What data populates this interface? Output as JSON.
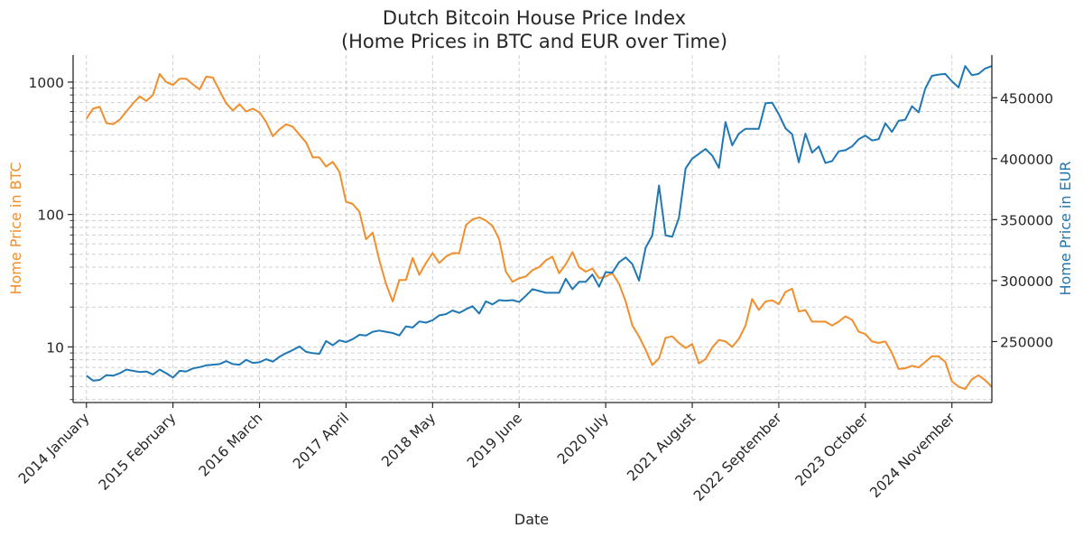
{
  "chart_data": {
    "type": "line",
    "title": "Dutch Bitcoin House Price Index",
    "subtitle": "(Home Prices in BTC and EUR over Time)",
    "xlabel": "Date",
    "x_tick_labels": [
      "2014 January",
      "2015 February",
      "2016 March",
      "2017 April",
      "2018 May",
      "2019 June",
      "2020 July",
      "2021 August",
      "2022 September",
      "2023 October",
      "2024 November"
    ],
    "x_tick_dates": [
      "2014-01",
      "2015-02",
      "2016-03",
      "2017-04",
      "2018-05",
      "2019-06",
      "2020-07",
      "2021-08",
      "2022-09",
      "2023-10",
      "2024-11"
    ],
    "x_range": [
      "2013-11",
      "2025-05"
    ],
    "left_axis": {
      "label": "Home Price in BTC",
      "scale": "log",
      "range": [
        3.8,
        1600
      ],
      "ticks": [
        10,
        100,
        1000
      ],
      "tick_labels": [
        "10",
        "100",
        "1000"
      ],
      "color": "#f28e2b"
    },
    "right_axis": {
      "label": "Home Price in EUR",
      "scale": "linear",
      "range": [
        200000,
        485000
      ],
      "ticks": [
        250000,
        300000,
        350000,
        400000,
        450000
      ],
      "tick_labels": [
        "250000",
        "300000",
        "350000",
        "400000",
        "450000"
      ],
      "color": "#1f77b4"
    },
    "grid": true,
    "series": [
      {
        "axis": "left",
        "color": "#f28e2b",
        "points": [
          [
            "2014-01",
            530
          ],
          [
            "2014-02",
            630
          ],
          [
            "2014-03",
            650
          ],
          [
            "2014-04",
            490
          ],
          [
            "2014-05",
            480
          ],
          [
            "2014-06",
            520
          ],
          [
            "2014-07",
            600
          ],
          [
            "2014-08",
            690
          ],
          [
            "2014-09",
            780
          ],
          [
            "2014-10",
            720
          ],
          [
            "2014-11",
            800
          ],
          [
            "2014-12",
            1150
          ],
          [
            "2015-01",
            1000
          ],
          [
            "2015-02",
            950
          ],
          [
            "2015-03",
            1060
          ],
          [
            "2015-04",
            1060
          ],
          [
            "2015-05",
            960
          ],
          [
            "2015-06",
            880
          ],
          [
            "2015-07",
            1100
          ],
          [
            "2015-08",
            1080
          ],
          [
            "2015-09",
            860
          ],
          [
            "2015-10",
            690
          ],
          [
            "2015-11",
            610
          ],
          [
            "2015-12",
            680
          ],
          [
            "2016-01",
            600
          ],
          [
            "2016-02",
            630
          ],
          [
            "2016-03",
            590
          ],
          [
            "2016-04",
            500
          ],
          [
            "2016-05",
            390
          ],
          [
            "2016-06",
            440
          ],
          [
            "2016-07",
            480
          ],
          [
            "2016-08",
            460
          ],
          [
            "2016-09",
            400
          ],
          [
            "2016-10",
            350
          ],
          [
            "2016-11",
            270
          ],
          [
            "2016-12",
            270
          ],
          [
            "2017-01",
            230
          ],
          [
            "2017-02",
            250
          ],
          [
            "2017-03",
            210
          ],
          [
            "2017-04",
            125
          ],
          [
            "2017-05",
            120
          ],
          [
            "2017-06",
            105
          ],
          [
            "2017-07",
            65
          ],
          [
            "2017-08",
            73
          ],
          [
            "2017-09",
            45
          ],
          [
            "2017-10",
            30
          ],
          [
            "2017-11",
            22
          ],
          [
            "2017-12",
            32
          ],
          [
            "2018-01",
            32
          ],
          [
            "2018-02",
            47
          ],
          [
            "2018-03",
            35
          ],
          [
            "2018-04",
            43
          ],
          [
            "2018-05",
            51
          ],
          [
            "2018-06",
            43
          ],
          [
            "2018-07",
            48
          ],
          [
            "2018-08",
            51
          ],
          [
            "2018-09",
            51
          ],
          [
            "2018-10",
            83
          ],
          [
            "2018-11",
            92
          ],
          [
            "2018-12",
            95
          ],
          [
            "2019-01",
            90
          ],
          [
            "2019-02",
            82
          ],
          [
            "2019-03",
            65
          ],
          [
            "2019-04",
            37
          ],
          [
            "2019-05",
            31
          ],
          [
            "2019-06",
            33
          ],
          [
            "2019-07",
            34
          ],
          [
            "2019-08",
            38
          ],
          [
            "2019-09",
            40
          ],
          [
            "2019-10",
            45
          ],
          [
            "2019-11",
            48
          ],
          [
            "2019-12",
            36
          ],
          [
            "2020-01",
            42
          ],
          [
            "2020-02",
            52
          ],
          [
            "2020-03",
            40
          ],
          [
            "2020-04",
            37
          ],
          [
            "2020-05",
            39
          ],
          [
            "2020-06",
            33
          ],
          [
            "2020-07",
            34
          ],
          [
            "2020-08",
            36
          ],
          [
            "2020-09",
            30
          ],
          [
            "2020-10",
            22
          ],
          [
            "2020-11",
            14.5
          ],
          [
            "2020-12",
            12
          ],
          [
            "2021-01",
            9.5
          ],
          [
            "2021-02",
            7.3
          ],
          [
            "2021-03",
            8.2
          ],
          [
            "2021-04",
            11.7
          ],
          [
            "2021-05",
            12
          ],
          [
            "2021-06",
            10.7
          ],
          [
            "2021-07",
            9.8
          ],
          [
            "2021-08",
            10.5
          ],
          [
            "2021-09",
            7.5
          ],
          [
            "2021-10",
            8.1
          ],
          [
            "2021-11",
            9.9
          ],
          [
            "2021-12",
            11.3
          ],
          [
            "2022-01",
            11
          ],
          [
            "2022-02",
            10
          ],
          [
            "2022-03",
            11.5
          ],
          [
            "2022-04",
            14.5
          ],
          [
            "2022-05",
            23
          ],
          [
            "2022-06",
            19
          ],
          [
            "2022-07",
            22
          ],
          [
            "2022-08",
            22.5
          ],
          [
            "2022-09",
            21
          ],
          [
            "2022-10",
            26
          ],
          [
            "2022-11",
            27.5
          ],
          [
            "2022-12",
            18.5
          ],
          [
            "2023-01",
            19
          ],
          [
            "2023-02",
            15.5
          ],
          [
            "2023-03",
            15.5
          ],
          [
            "2023-04",
            15.5
          ],
          [
            "2023-05",
            14.5
          ],
          [
            "2023-06",
            15.5
          ],
          [
            "2023-07",
            17
          ],
          [
            "2023-08",
            16
          ],
          [
            "2023-09",
            13
          ],
          [
            "2023-10",
            12.5
          ],
          [
            "2023-11",
            11
          ],
          [
            "2023-12",
            10.7
          ],
          [
            "2024-01",
            11
          ],
          [
            "2024-02",
            9
          ],
          [
            "2024-03",
            6.8
          ],
          [
            "2024-04",
            6.9
          ],
          [
            "2024-05",
            7.2
          ],
          [
            "2024-06",
            7
          ],
          [
            "2024-07",
            7.7
          ],
          [
            "2024-08",
            8.5
          ],
          [
            "2024-09",
            8.5
          ],
          [
            "2024-10",
            7.7
          ],
          [
            "2024-11",
            5.5
          ],
          [
            "2024-12",
            5
          ],
          [
            "2025-01",
            4.8
          ],
          [
            "2025-02",
            5.7
          ],
          [
            "2025-03",
            6.1
          ],
          [
            "2025-04",
            5.6
          ],
          [
            "2025-05",
            5
          ]
        ]
      },
      {
        "axis": "right",
        "color": "#1f77b4",
        "points": [
          [
            "2014-01",
            222000
          ],
          [
            "2014-02",
            218000
          ],
          [
            "2014-03",
            218500
          ],
          [
            "2014-04",
            222500
          ],
          [
            "2014-05",
            222000
          ],
          [
            "2014-06",
            224000
          ],
          [
            "2014-07",
            227000
          ],
          [
            "2014-08",
            226000
          ],
          [
            "2014-09",
            225000
          ],
          [
            "2014-10",
            225500
          ],
          [
            "2014-11",
            223000
          ],
          [
            "2014-12",
            227000
          ],
          [
            "2015-01",
            224000
          ],
          [
            "2015-02",
            220500
          ],
          [
            "2015-03",
            226000
          ],
          [
            "2015-04",
            225500
          ],
          [
            "2015-05",
            228000
          ],
          [
            "2015-06",
            229000
          ],
          [
            "2015-07",
            230500
          ],
          [
            "2015-08",
            231000
          ],
          [
            "2015-09",
            231500
          ],
          [
            "2015-10",
            234000
          ],
          [
            "2015-11",
            231500
          ],
          [
            "2015-12",
            231000
          ],
          [
            "2016-01",
            235000
          ],
          [
            "2016-02",
            232500
          ],
          [
            "2016-03",
            233000
          ],
          [
            "2016-04",
            235500
          ],
          [
            "2016-05",
            233500
          ],
          [
            "2016-06",
            237500
          ],
          [
            "2016-07",
            240500
          ],
          [
            "2016-08",
            243000
          ],
          [
            "2016-09",
            246000
          ],
          [
            "2016-10",
            241500
          ],
          [
            "2016-11",
            240500
          ],
          [
            "2016-12",
            240000
          ],
          [
            "2017-01",
            250500
          ],
          [
            "2017-02",
            247000
          ],
          [
            "2017-03",
            251000
          ],
          [
            "2017-04",
            249500
          ],
          [
            "2017-05",
            252000
          ],
          [
            "2017-06",
            255500
          ],
          [
            "2017-07",
            255000
          ],
          [
            "2017-08",
            258000
          ],
          [
            "2017-09",
            259000
          ],
          [
            "2017-10",
            258000
          ],
          [
            "2017-11",
            257000
          ],
          [
            "2017-12",
            255000
          ],
          [
            "2018-01",
            262500
          ],
          [
            "2018-02",
            261500
          ],
          [
            "2018-03",
            266500
          ],
          [
            "2018-04",
            265500
          ],
          [
            "2018-05",
            267500
          ],
          [
            "2018-06",
            271500
          ],
          [
            "2018-07",
            272500
          ],
          [
            "2018-08",
            275500
          ],
          [
            "2018-09",
            273500
          ],
          [
            "2018-10",
            276500
          ],
          [
            "2018-11",
            279000
          ],
          [
            "2018-12",
            273000
          ],
          [
            "2019-01",
            283000
          ],
          [
            "2019-02",
            280500
          ],
          [
            "2019-03",
            284000
          ],
          [
            "2019-04",
            283500
          ],
          [
            "2019-05",
            284000
          ],
          [
            "2019-06",
            282500
          ],
          [
            "2019-07",
            287500
          ],
          [
            "2019-08",
            293000
          ],
          [
            "2019-09",
            291500
          ],
          [
            "2019-10",
            290000
          ],
          [
            "2019-11",
            290000
          ],
          [
            "2019-12",
            290000
          ],
          [
            "2020-01",
            301500
          ],
          [
            "2020-02",
            293000
          ],
          [
            "2020-03",
            299000
          ],
          [
            "2020-04",
            299000
          ],
          [
            "2020-05",
            305000
          ],
          [
            "2020-06",
            295000
          ],
          [
            "2020-07",
            307000
          ],
          [
            "2020-08",
            306500
          ],
          [
            "2020-09",
            315000
          ],
          [
            "2020-10",
            319000
          ],
          [
            "2020-11",
            313500
          ],
          [
            "2020-12",
            300000
          ],
          [
            "2021-01",
            327000
          ],
          [
            "2021-02",
            337000
          ],
          [
            "2021-03",
            378000
          ],
          [
            "2021-04",
            337000
          ],
          [
            "2021-05",
            336000
          ],
          [
            "2021-06",
            351500
          ],
          [
            "2021-07",
            392000
          ],
          [
            "2021-08",
            400000
          ],
          [
            "2021-09",
            404000
          ],
          [
            "2021-10",
            408000
          ],
          [
            "2021-11",
            402500
          ],
          [
            "2021-12",
            392500
          ],
          [
            "2022-01",
            430000
          ],
          [
            "2022-02",
            411000
          ],
          [
            "2022-03",
            420500
          ],
          [
            "2022-04",
            424500
          ],
          [
            "2022-05",
            424500
          ],
          [
            "2022-06",
            424500
          ],
          [
            "2022-07",
            445500
          ],
          [
            "2022-08",
            446000
          ],
          [
            "2022-09",
            436500
          ],
          [
            "2022-10",
            425000
          ],
          [
            "2022-11",
            420000
          ],
          [
            "2022-12",
            397000
          ],
          [
            "2023-01",
            420500
          ],
          [
            "2023-02",
            405000
          ],
          [
            "2023-03",
            410000
          ],
          [
            "2023-04",
            396500
          ],
          [
            "2023-05",
            398000
          ],
          [
            "2023-06",
            406000
          ],
          [
            "2023-07",
            407000
          ],
          [
            "2023-08",
            410000
          ],
          [
            "2023-09",
            416000
          ],
          [
            "2023-10",
            419000
          ],
          [
            "2023-11",
            415000
          ],
          [
            "2023-12",
            416000
          ],
          [
            "2024-01",
            429000
          ],
          [
            "2024-02",
            422000
          ],
          [
            "2024-03",
            431000
          ],
          [
            "2024-04",
            432000
          ],
          [
            "2024-05",
            443000
          ],
          [
            "2024-06",
            438000
          ],
          [
            "2024-07",
            457500
          ],
          [
            "2024-08",
            468000
          ],
          [
            "2024-09",
            469000
          ],
          [
            "2024-10",
            469500
          ],
          [
            "2024-11",
            463500
          ],
          [
            "2024-12",
            458500
          ],
          [
            "2025-01",
            476000
          ],
          [
            "2025-02",
            468500
          ],
          [
            "2025-03",
            469500
          ],
          [
            "2025-04",
            474000
          ],
          [
            "2025-05",
            476000
          ]
        ]
      }
    ]
  }
}
